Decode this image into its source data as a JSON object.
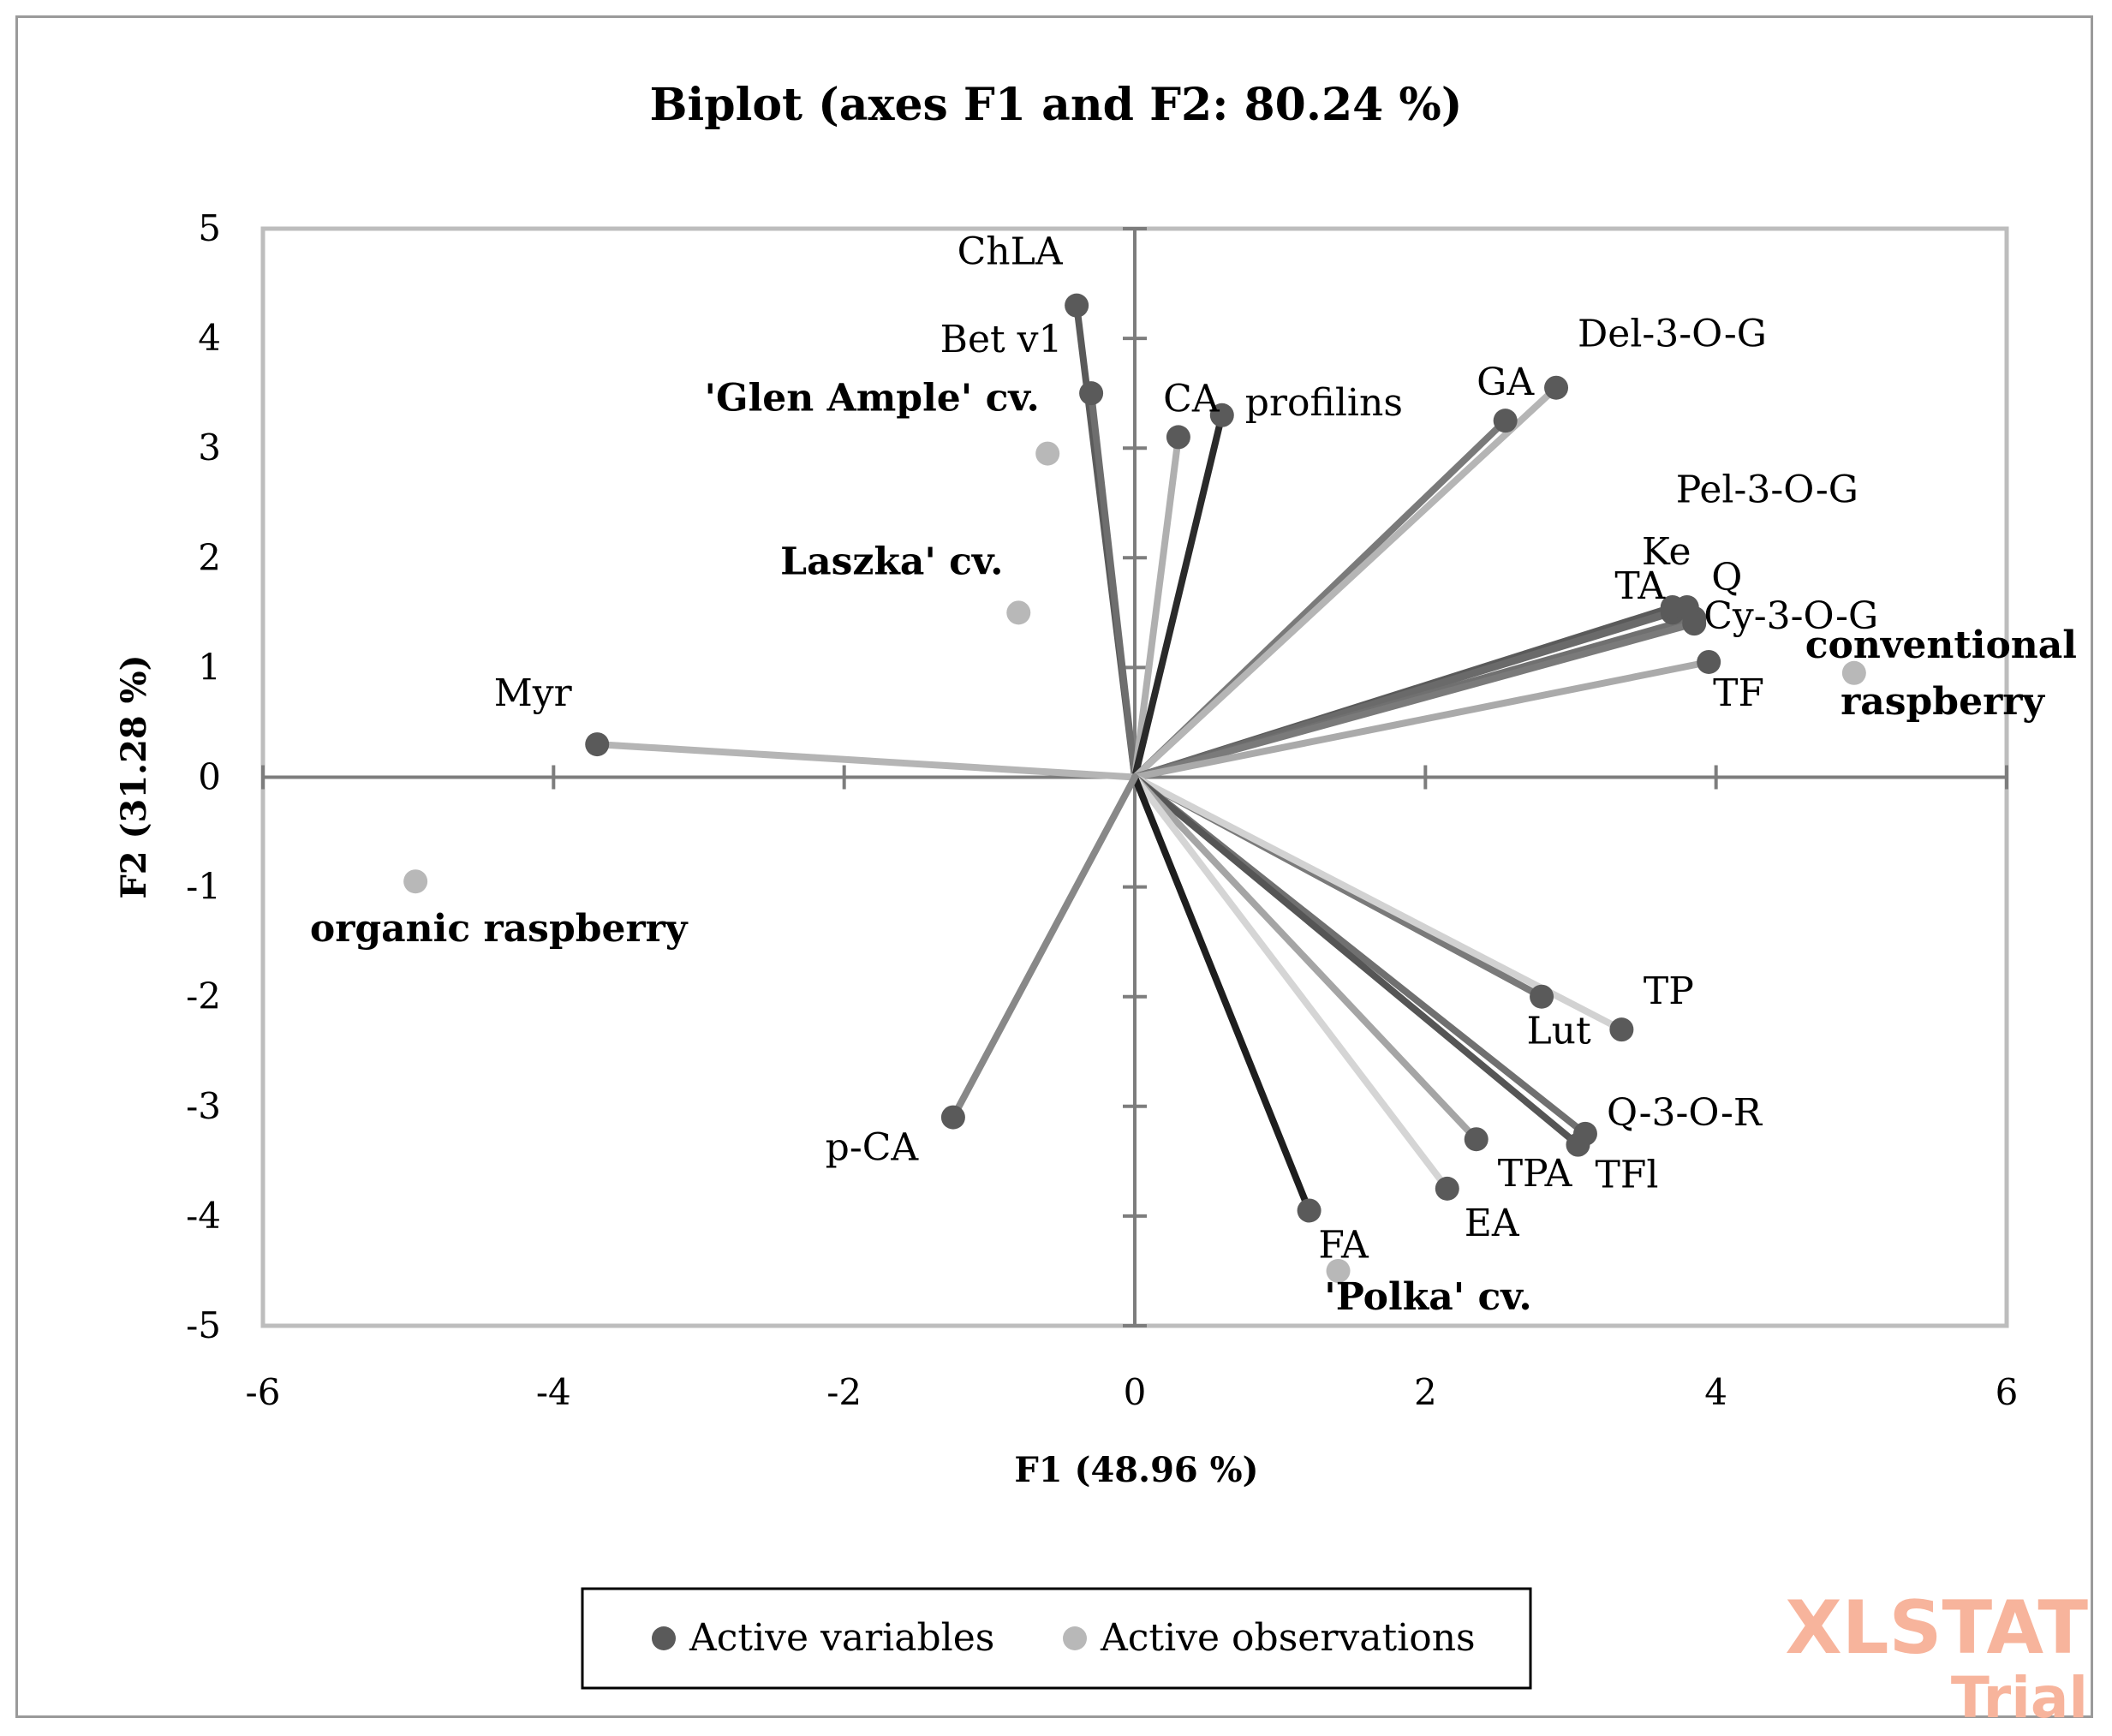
{
  "chart_data": {
    "type": "scatter",
    "title": "Biplot (axes F1 and F2: 80.24 %)",
    "xlabel": "F1 (48.96 %)",
    "ylabel": "F2 (31.28 %)",
    "xlim": [
      -6,
      6
    ],
    "ylim": [
      -5,
      5
    ],
    "xticks": [
      -6,
      -4,
      -2,
      0,
      2,
      4,
      6
    ],
    "yticks": [
      -5,
      -4,
      -3,
      -2,
      -1,
      0,
      1,
      2,
      3,
      4,
      5
    ],
    "xtick_labels": [
      "-6",
      "-4",
      "-2",
      "0",
      "2",
      "4",
      "6"
    ],
    "ytick_labels": [
      "-5",
      "-4",
      "-3",
      "-2",
      "-1",
      "0",
      "1",
      "2",
      "3",
      "4",
      "5"
    ],
    "legend": {
      "position": "bottom",
      "entries": [
        {
          "name": "Active variables",
          "color": "#5a5a5a"
        },
        {
          "name": "Active observations",
          "color": "#b8b8b8"
        }
      ]
    },
    "watermark": {
      "line1": "XLSTAT",
      "line2": "Trial",
      "color": "#f7b49c"
    },
    "series": [
      {
        "name": "Active variables",
        "color": "#5a5a5a",
        "points": [
          {
            "label": "ChLA",
            "x": -0.4,
            "y": 4.3,
            "line_color": "#5a5a5a"
          },
          {
            "label": "Bet v1",
            "x": -0.3,
            "y": 3.5,
            "line_color": "#6e6e6e"
          },
          {
            "label": "CA",
            "x": 0.3,
            "y": 3.1,
            "line_color": "#b0b0b0"
          },
          {
            "label": "profilins",
            "x": 0.6,
            "y": 3.3,
            "line_color": "#2a2a2a"
          },
          {
            "label": "GA",
            "x": 2.55,
            "y": 3.25,
            "line_color": "#7a7a7a"
          },
          {
            "label": "Del-3-O-G",
            "x": 2.9,
            "y": 3.55,
            "line_color": "#b5b5b5"
          },
          {
            "label": "Pel-3-O-G",
            "x": 3.7,
            "y": 1.5,
            "line_color": "#6a6a6a"
          },
          {
            "label": "TA",
            "x": 3.7,
            "y": 1.55,
            "line_color": "#5a5a5a"
          },
          {
            "label": "Ke",
            "x": 3.8,
            "y": 1.55,
            "line_color": "#6a6a6a"
          },
          {
            "label": "Q",
            "x": 3.85,
            "y": 1.45,
            "line_color": "#707070"
          },
          {
            "label": "Cy-3-O-G",
            "x": 3.85,
            "y": 1.4,
            "line_color": "#7a7a7a"
          },
          {
            "label": "TF",
            "x": 3.95,
            "y": 1.05,
            "line_color": "#aaaaaa"
          },
          {
            "label": "Myr",
            "x": -3.7,
            "y": 0.3,
            "line_color": "#b5b5b5"
          },
          {
            "label": "Lut",
            "x": 2.8,
            "y": -2.0,
            "line_color": "#7a7a7a"
          },
          {
            "label": "TP",
            "x": 3.35,
            "y": -2.3,
            "line_color": "#d2d2d2"
          },
          {
            "label": "Q-3-O-R",
            "x": 3.1,
            "y": -3.25,
            "line_color": "#707070"
          },
          {
            "label": "TFl",
            "x": 3.05,
            "y": -3.35,
            "line_color": "#555555"
          },
          {
            "label": "TPA",
            "x": 2.35,
            "y": -3.3,
            "line_color": "#a5a5a5"
          },
          {
            "label": "EA",
            "x": 2.15,
            "y": -3.75,
            "line_color": "#d5d5d5"
          },
          {
            "label": "FA",
            "x": 1.2,
            "y": -3.95,
            "line_color": "#1e1e1e"
          },
          {
            "label": "p-CA",
            "x": -1.25,
            "y": -3.1,
            "line_color": "#888888"
          }
        ]
      },
      {
        "name": "Active observations",
        "color": "#b8b8b8",
        "points": [
          {
            "label": "'Glen Ample' cv.",
            "x": -0.6,
            "y": 2.95
          },
          {
            "label": "Laszka' cv.",
            "x": -0.8,
            "y": 1.5
          },
          {
            "label": "conventional raspberry",
            "x": 4.95,
            "y": 0.95
          },
          {
            "label": "organic raspberry",
            "x": -4.95,
            "y": -0.95
          },
          {
            "label": "'Polka' cv.",
            "x": 1.4,
            "y": -4.5
          }
        ]
      }
    ]
  }
}
